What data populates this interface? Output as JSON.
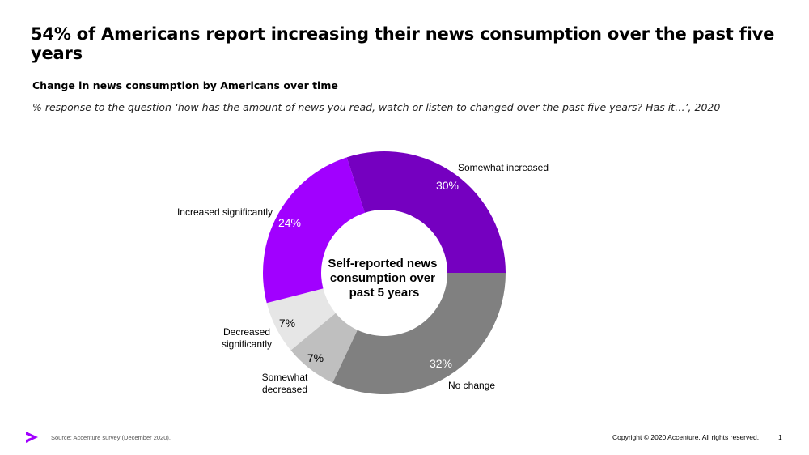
{
  "title": "54% of Americans report increasing their news consumption over the past five years",
  "subtitle": "Change in news consumption by Americans over time",
  "question": "% response to the question ‘how has the amount of news you read, watch or listen to changed over the past five years? Has it…’, 2020",
  "chart_data": {
    "type": "pie",
    "variant": "donut",
    "center_label": [
      "Self-reported news",
      "consumption over",
      "past 5 years"
    ],
    "unit": "%",
    "slices": [
      {
        "label": "Somewhat increased",
        "value": 30,
        "display": "30%",
        "color": "#7500c0",
        "text_color": "#ffffff"
      },
      {
        "label": "No change",
        "value": 32,
        "display": "32%",
        "color": "#808080",
        "text_color": "#ffffff"
      },
      {
        "label": "Somewhat decreased",
        "value": 7,
        "display": "7%",
        "color": "#bfbfbf",
        "text_color": "#000000"
      },
      {
        "label": "Decreased significantly",
        "value": 7,
        "display": "7%",
        "color": "#e6e6e6",
        "text_color": "#000000"
      },
      {
        "label": "Increased significantly",
        "value": 24,
        "display": "24%",
        "color": "#a100ff",
        "text_color": "#ffffff"
      }
    ]
  },
  "footer": {
    "source": "Source:  Accenture  survey  (December  2020).",
    "copyright": "Copyright © 2020 Accenture. All rights reserved.",
    "page": "1",
    "logo_color": "#a100ff"
  }
}
